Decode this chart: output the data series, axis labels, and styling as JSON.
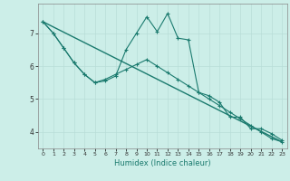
{
  "xlabel": "Humidex (Indice chaleur)",
  "bg_color": "#cceee8",
  "line_color": "#1a7a6e",
  "grid_color": "#b8ddd8",
  "xlim": [
    -0.5,
    23.5
  ],
  "ylim": [
    3.5,
    7.9
  ],
  "yticks": [
    4,
    5,
    6,
    7
  ],
  "xticks": [
    0,
    1,
    2,
    3,
    4,
    5,
    6,
    7,
    8,
    9,
    10,
    11,
    12,
    13,
    14,
    15,
    16,
    17,
    18,
    19,
    20,
    21,
    22,
    23
  ],
  "line1_x": [
    0,
    1,
    2,
    3,
    4,
    5,
    6,
    7,
    8,
    9,
    10,
    11,
    12,
    13,
    14,
    15,
    16,
    17,
    18,
    19,
    20,
    21,
    22,
    23
  ],
  "line1_y": [
    7.35,
    7.0,
    6.55,
    6.1,
    5.75,
    5.5,
    5.55,
    5.7,
    6.5,
    7.0,
    7.5,
    7.05,
    7.6,
    6.85,
    6.8,
    5.2,
    5.1,
    4.9,
    4.45,
    4.45,
    4.1,
    4.1,
    3.95,
    3.75
  ],
  "line2_x": [
    0,
    1,
    2,
    3,
    4,
    5,
    6,
    7,
    8,
    9,
    10,
    11,
    12,
    13,
    14,
    15,
    16,
    17,
    18,
    19,
    20,
    21,
    22,
    23
  ],
  "line2_y": [
    7.35,
    7.0,
    6.55,
    6.1,
    5.75,
    5.5,
    5.6,
    5.75,
    5.9,
    6.05,
    6.2,
    6.0,
    5.8,
    5.6,
    5.4,
    5.2,
    5.0,
    4.8,
    4.6,
    4.4,
    4.2,
    4.0,
    3.8,
    3.7
  ],
  "line3_x": [
    0,
    23
  ],
  "line3_y": [
    7.35,
    3.7
  ]
}
